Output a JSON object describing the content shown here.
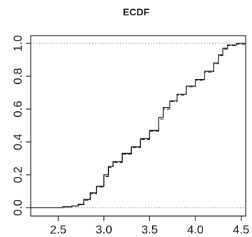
{
  "chart_data": {
    "type": "line",
    "title": "ECDF",
    "xlabel": "",
    "ylabel": "",
    "xlim": [
      2.2,
      4.55
    ],
    "ylim": [
      0.0,
      1.0
    ],
    "x_ticks": [
      2.5,
      3.0,
      3.5,
      4.0,
      4.5
    ],
    "x_tick_labels": [
      "2.5",
      "3.0",
      "3.5",
      "4.0",
      "4.5"
    ],
    "y_ticks": [
      0.0,
      0.2,
      0.4,
      0.6,
      0.8,
      1.0
    ],
    "y_tick_labels": [
      "0.0",
      "0.2",
      "0.4",
      "0.6",
      "0.8",
      "1.0"
    ],
    "grid": false,
    "reference_lines": [
      0.0,
      1.0
    ],
    "series": [
      {
        "style": "solid",
        "x": [
          2.2,
          2.45,
          2.55,
          2.65,
          2.72,
          2.78,
          2.85,
          2.92,
          3.0,
          3.05,
          3.1,
          3.2,
          3.3,
          3.4,
          3.5,
          3.6,
          3.65,
          3.72,
          3.8,
          3.9,
          4.0,
          4.1,
          4.2,
          4.25,
          4.3,
          4.35,
          4.45,
          4.55
        ],
        "y": [
          0.0,
          0.0,
          0.005,
          0.01,
          0.02,
          0.05,
          0.09,
          0.13,
          0.2,
          0.25,
          0.28,
          0.33,
          0.37,
          0.42,
          0.47,
          0.55,
          0.61,
          0.65,
          0.69,
          0.74,
          0.78,
          0.83,
          0.88,
          0.93,
          0.97,
          0.99,
          1.0,
          1.0
        ]
      },
      {
        "style": "dashed",
        "x": [
          2.2,
          2.45,
          2.55,
          2.65,
          2.72,
          2.78,
          2.85,
          2.92,
          3.0,
          3.05,
          3.1,
          3.2,
          3.3,
          3.4,
          3.5,
          3.6,
          3.65,
          3.72,
          3.8,
          3.9,
          4.0,
          4.1,
          4.2,
          4.25,
          4.3,
          4.35,
          4.45,
          4.55
        ],
        "y": [
          0.0,
          0.0,
          0.004,
          0.009,
          0.018,
          0.045,
          0.085,
          0.125,
          0.19,
          0.245,
          0.275,
          0.325,
          0.365,
          0.415,
          0.465,
          0.54,
          0.6,
          0.645,
          0.685,
          0.735,
          0.775,
          0.825,
          0.875,
          0.925,
          0.965,
          0.985,
          0.995,
          0.995
        ]
      }
    ]
  }
}
